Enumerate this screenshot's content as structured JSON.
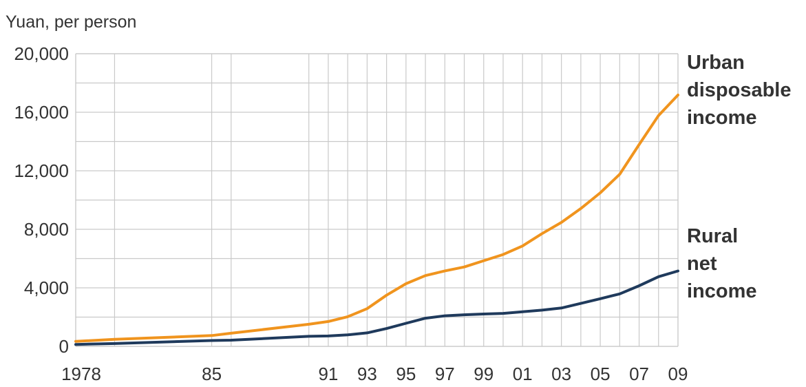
{
  "chart_data": {
    "type": "line",
    "ylabel": "Yuan, per person",
    "ylim": [
      0,
      20000
    ],
    "yticks": [
      0,
      4000,
      8000,
      12000,
      16000,
      20000
    ],
    "ytick_labels": [
      "0",
      "4,000",
      "8,000",
      "12,000",
      "16,000",
      "20,000"
    ],
    "xlim": [
      1978,
      2009
    ],
    "xticks": [
      1978,
      1985,
      1991,
      1993,
      1995,
      1997,
      1999,
      2001,
      2003,
      2005,
      2007,
      2009
    ],
    "xtick_labels": [
      "1978",
      "85",
      "91",
      "93",
      "95",
      "97",
      "99",
      "01",
      "03",
      "05",
      "07",
      "09"
    ],
    "gridlines_x": [
      1978,
      1980,
      1985,
      1986,
      1990,
      1991,
      1992,
      1993,
      1994,
      1995,
      1996,
      1997,
      1998,
      1999,
      2000,
      2001,
      2002,
      2003,
      2004,
      2005,
      2006,
      2007,
      2008,
      2009
    ],
    "grid": true,
    "series": [
      {
        "name": "Urban disposable income",
        "label_lines": [
          "Urban",
          "disposable",
          "income"
        ],
        "color": "#f0941e",
        "points": [
          [
            1978,
            343
          ],
          [
            1980,
            478
          ],
          [
            1985,
            739
          ],
          [
            1986,
            900
          ],
          [
            1990,
            1510
          ],
          [
            1991,
            1700
          ],
          [
            1992,
            2027
          ],
          [
            1993,
            2577
          ],
          [
            1994,
            3496
          ],
          [
            1995,
            4283
          ],
          [
            1996,
            4839
          ],
          [
            1997,
            5160
          ],
          [
            1998,
            5425
          ],
          [
            1999,
            5854
          ],
          [
            2000,
            6280
          ],
          [
            2001,
            6860
          ],
          [
            2002,
            7703
          ],
          [
            2003,
            8472
          ],
          [
            2004,
            9422
          ],
          [
            2005,
            10493
          ],
          [
            2006,
            11759
          ],
          [
            2007,
            13786
          ],
          [
            2008,
            15781
          ],
          [
            2009,
            17175
          ]
        ]
      },
      {
        "name": "Rural net income",
        "label_lines": [
          "Rural",
          "net",
          "income"
        ],
        "color": "#1f3a5c",
        "points": [
          [
            1978,
            134
          ],
          [
            1980,
            191
          ],
          [
            1985,
            398
          ],
          [
            1986,
            424
          ],
          [
            1990,
            686
          ],
          [
            1991,
            709
          ],
          [
            1992,
            784
          ],
          [
            1993,
            922
          ],
          [
            1994,
            1221
          ],
          [
            1995,
            1578
          ],
          [
            1996,
            1926
          ],
          [
            1997,
            2090
          ],
          [
            1998,
            2162
          ],
          [
            1999,
            2210
          ],
          [
            2000,
            2253
          ],
          [
            2001,
            2366
          ],
          [
            2002,
            2476
          ],
          [
            2003,
            2622
          ],
          [
            2004,
            2936
          ],
          [
            2005,
            3255
          ],
          [
            2006,
            3587
          ],
          [
            2007,
            4140
          ],
          [
            2008,
            4761
          ],
          [
            2009,
            5153
          ]
        ]
      }
    ]
  }
}
